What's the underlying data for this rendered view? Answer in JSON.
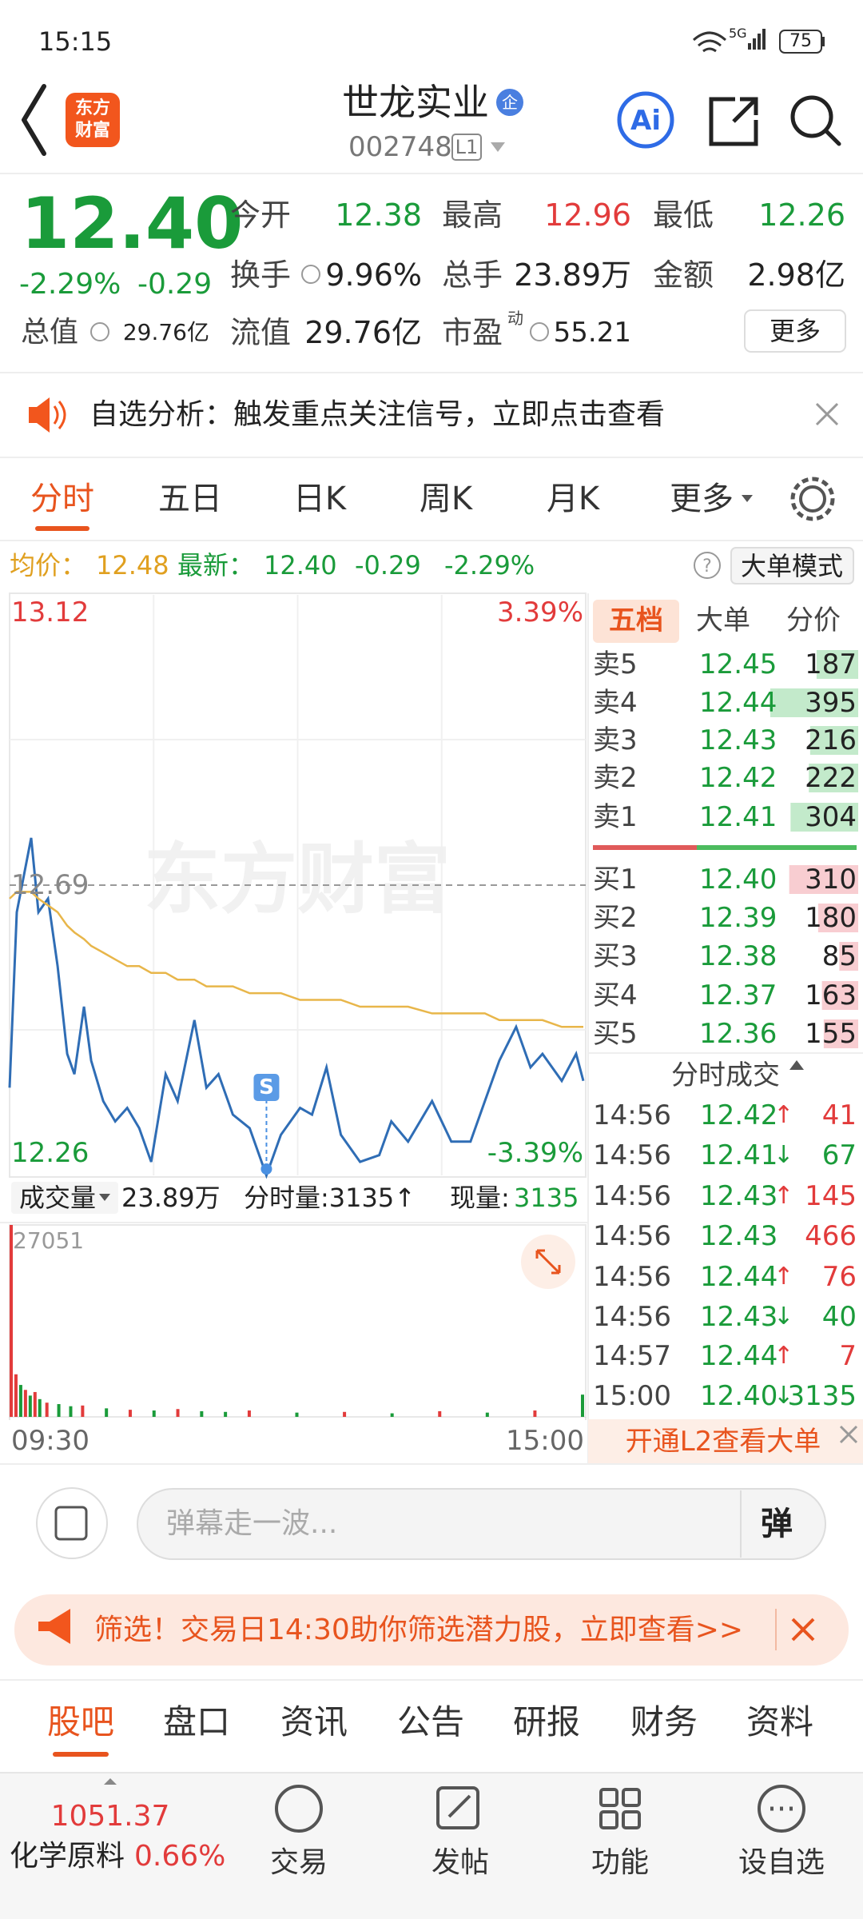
{
  "status": {
    "time": "15:15",
    "network": "5G",
    "battery": "75"
  },
  "header": {
    "logo": [
      "东方",
      "财富"
    ],
    "title": "世龙实业",
    "badge": "企",
    "code": "002748",
    "level": "L1"
  },
  "quote": {
    "price": "12.40",
    "change_pct": "-2.29%",
    "change": "-0.29",
    "more": "更多",
    "fields": [
      {
        "label": "今开",
        "value": "12.38",
        "color": "#1a9b3a"
      },
      {
        "label": "最高",
        "value": "12.96",
        "color": "#e23b3b"
      },
      {
        "label": "最低",
        "value": "12.26",
        "color": "#1a9b3a"
      },
      {
        "label": "换手",
        "value": "9.96%",
        "color": "#222222"
      },
      {
        "label": "总手",
        "value": "23.89万",
        "color": "#222222"
      },
      {
        "label": "金额",
        "value": "2.98亿",
        "color": "#222222"
      },
      {
        "label": "总值",
        "value": "29.76亿",
        "color": "#222222"
      },
      {
        "label": "流值",
        "value": "29.76亿",
        "color": "#222222"
      },
      {
        "label": "市盈",
        "sup": "动",
        "value": "55.21",
        "color": "#222222"
      }
    ]
  },
  "notice": "自选分析：触发重点关注信号，立即点击查看",
  "tabs": [
    "分时",
    "五日",
    "日K",
    "周K",
    "月K",
    "更多"
  ],
  "summary": {
    "avg_label": "均价：",
    "avg": "12.48",
    "latest_label": "最新：",
    "latest": "12.40",
    "change": "-0.29",
    "change_pct": "-2.29%",
    "mode": "大单模式"
  },
  "watermark": "东方财富",
  "chart_data": [
    {
      "type": "line",
      "x": [
        0,
        3,
        9,
        12,
        16,
        20,
        24,
        27,
        31,
        34,
        39,
        44,
        49,
        54,
        59,
        65,
        70,
        77,
        82,
        87,
        93,
        100,
        107,
        113,
        121,
        126,
        132,
        138,
        146,
        154,
        159,
        166,
        176,
        184,
        192,
        198,
        204,
        211,
        217,
        222,
        230,
        236,
        239
      ],
      "series": [
        {
          "color": "#2f6db5",
          "values": [
            12.39,
            12.65,
            12.76,
            12.65,
            12.67,
            12.57,
            12.44,
            12.41,
            12.51,
            12.43,
            12.37,
            12.34,
            12.36,
            12.33,
            12.28,
            12.41,
            12.37,
            12.49,
            12.39,
            12.41,
            12.35,
            12.33,
            12.26,
            12.32,
            12.36,
            12.35,
            12.42,
            12.32,
            12.28,
            12.29,
            12.34,
            12.31,
            12.37,
            12.31,
            12.31,
            12.37,
            12.43,
            12.48,
            12.42,
            12.44,
            12.4,
            12.44,
            12.4
          ]
        },
        {
          "color": "#e8b64a",
          "values": [
            12.67,
            12.68,
            12.68,
            12.67,
            12.66,
            12.65,
            12.63,
            12.62,
            12.61,
            12.6,
            12.59,
            12.58,
            12.57,
            12.57,
            12.56,
            12.56,
            12.55,
            12.55,
            12.54,
            12.54,
            12.54,
            12.53,
            12.53,
            12.53,
            12.52,
            12.52,
            12.52,
            12.52,
            12.51,
            12.51,
            12.51,
            12.51,
            12.5,
            12.5,
            12.5,
            12.5,
            12.49,
            12.49,
            12.49,
            12.49,
            12.48,
            12.48,
            12.48
          ]
        }
      ],
      "xlim": [
        0,
        240
      ],
      "xticks": [
        {
          "value": 0,
          "label": "09:30"
        },
        {
          "value": 240,
          "label": "15:00"
        }
      ],
      "ylim": [
        12.26,
        13.12
      ],
      "yticks": [
        12.26,
        12.69,
        13.12
      ],
      "y2lim": [
        -3.39,
        3.39
      ],
      "y2ticks": [
        {
          "value": 3.39,
          "label": "3.39%"
        },
        {
          "value": -3.39,
          "label": "-3.39%"
        }
      ],
      "annotations": [
        {
          "text": "S",
          "x": 107
        }
      ],
      "grid": true
    },
    {
      "type": "bar",
      "x": [
        0,
        2,
        4,
        6,
        8,
        10,
        12,
        15,
        20,
        25,
        30,
        40,
        50,
        60,
        70,
        80,
        90,
        100,
        120,
        140,
        160,
        180,
        200,
        220,
        240
      ],
      "values": [
        27051,
        6000,
        4500,
        3800,
        3000,
        3500,
        2500,
        2000,
        1800,
        1500,
        1600,
        1200,
        1000,
        900,
        1100,
        800,
        700,
        900,
        600,
        700,
        500,
        800,
        600,
        900,
        3135
      ],
      "colors": [
        "#e23b3b",
        "#e23b3b",
        "#1a9b3a",
        "#e23b3b",
        "#1a9b3a",
        "#e23b3b",
        "#1a9b3a",
        "#e23b3b",
        "#1a9b3a",
        "#1a9b3a",
        "#e23b3b",
        "#1a9b3a",
        "#e23b3b",
        "#1a9b3a",
        "#e23b3b",
        "#1a9b3a",
        "#1a9b3a",
        "#e23b3b",
        "#1a9b3a",
        "#e23b3b",
        "#1a9b3a",
        "#e23b3b",
        "#1a9b3a",
        "#e23b3b",
        "#1a9b3a"
      ],
      "xlim": [
        0,
        240
      ],
      "ylim": [
        0,
        27051
      ],
      "yticks": [
        27051
      ]
    }
  ],
  "volume_bar": {
    "label": "成交量",
    "total": "23.89万",
    "tick": "分时量:3135↑",
    "now_label": "现量:",
    "now": "3135"
  },
  "order_book": {
    "tabs": [
      "五档",
      "大单",
      "分价"
    ],
    "asks": [
      {
        "label": "卖5",
        "price": "12.45",
        "volume": 187
      },
      {
        "label": "卖4",
        "price": "12.44",
        "volume": 395
      },
      {
        "label": "卖3",
        "price": "12.43",
        "volume": 216
      },
      {
        "label": "卖2",
        "price": "12.42",
        "volume": 222
      },
      {
        "label": "卖1",
        "price": "12.41",
        "volume": 304
      }
    ],
    "bids": [
      {
        "label": "买1",
        "price": "12.40",
        "volume": 310
      },
      {
        "label": "买2",
        "price": "12.39",
        "volume": 180
      },
      {
        "label": "买3",
        "price": "12.38",
        "volume": 85
      },
      {
        "label": "买4",
        "price": "12.37",
        "volume": 163
      },
      {
        "label": "买5",
        "price": "12.36",
        "volume": 155
      }
    ]
  },
  "trades": {
    "title": "分时成交",
    "rows": [
      {
        "time": "14:56",
        "price": "12.42",
        "dir": "↑",
        "volume": "41",
        "color": "#e23b3b"
      },
      {
        "time": "14:56",
        "price": "12.41",
        "dir": "↓",
        "volume": "67",
        "color": "#1a9b3a"
      },
      {
        "time": "14:56",
        "price": "12.43",
        "dir": "↑",
        "volume": "145",
        "color": "#e23b3b"
      },
      {
        "time": "14:56",
        "price": "12.43",
        "volume": "466",
        "color": "#e23b3b"
      },
      {
        "time": "14:56",
        "price": "12.44",
        "dir": "↑",
        "volume": "76",
        "color": "#e23b3b"
      },
      {
        "time": "14:56",
        "price": "12.43",
        "dir": "↓",
        "volume": "40",
        "color": "#1a9b3a"
      },
      {
        "time": "14:57",
        "price": "12.44",
        "dir": "↑",
        "volume": "7",
        "color": "#e23b3b"
      },
      {
        "time": "15:00",
        "price": "12.40",
        "dir": "↓",
        "volume": "3135",
        "color": "#1a9b3a"
      }
    ]
  },
  "l2": "开通L2查看大单",
  "comment": {
    "placeholder": "弹幕走一波...",
    "button": "弹"
  },
  "banner": "筛选！交易日14:30助你筛选潜力股，立即查看>>",
  "bottom_tabs": [
    "股吧",
    "盘口",
    "资讯",
    "公告",
    "研报",
    "财务",
    "资料"
  ],
  "nav": {
    "index_value": "1051.37",
    "index_name": "化学原料",
    "index_change": "0.66%",
    "items": [
      "交易",
      "发帖",
      "功能",
      "设自选"
    ]
  }
}
